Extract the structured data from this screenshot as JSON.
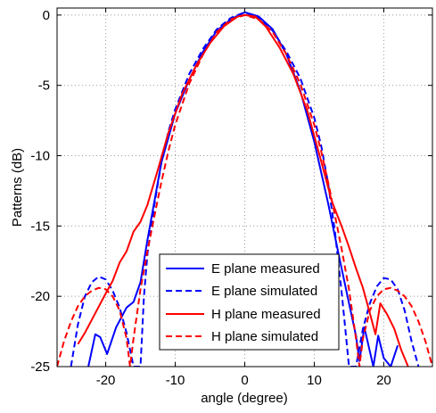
{
  "chart_data": {
    "type": "line",
    "title": "",
    "xlabel": "angle (degree)",
    "ylabel": "Patterns (dB)",
    "xlim": [
      -27,
      27
    ],
    "ylim": [
      -25,
      0.5
    ],
    "x_ticks": [
      -20,
      -10,
      0,
      10,
      20
    ],
    "x_tick_labels": [
      "-20",
      "-10",
      "0",
      "10",
      "20"
    ],
    "y_ticks": [
      0,
      -5,
      -10,
      -15,
      -20,
      -25
    ],
    "y_tick_labels": [
      "0",
      "-5",
      "-10",
      "-15",
      "-20",
      "-25"
    ],
    "grid": true,
    "legend_position": "bottom-center",
    "series": [
      {
        "name": "E plane measured",
        "color": "#0000ff",
        "dash": "solid",
        "x": [
          -22.5,
          -21.5,
          -20.8,
          -19.8,
          -18.5,
          -17.0,
          -16.0,
          -15.0,
          -14.0,
          -12.0,
          -10.0,
          -8.0,
          -6.0,
          -4.0,
          -2.0,
          0.0,
          2.0,
          4.0,
          6.0,
          8.0,
          10.0,
          12.0,
          13.5,
          15.0,
          16.0,
          16.5,
          17.2,
          18.5,
          19.2,
          20.0,
          21.0,
          22.0
        ],
        "y": [
          -25,
          -22.7,
          -22.9,
          -24.1,
          -22.2,
          -20.8,
          -20.4,
          -19.0,
          -16.0,
          -10.5,
          -7.0,
          -4.6,
          -2.6,
          -1.1,
          -0.3,
          0.2,
          -0.1,
          -1.0,
          -2.8,
          -5.4,
          -9.0,
          -13.4,
          -17.0,
          -20.5,
          -22.8,
          -24.6,
          -22.2,
          -25.0,
          -22.8,
          -24.4,
          -25.0,
          -23.5
        ]
      },
      {
        "name": "E plane simulated",
        "color": "#0000ff",
        "dash": "dashed",
        "x": [
          -25.0,
          -24.0,
          -23.0,
          -22.0,
          -21.0,
          -20.0,
          -19.0,
          -18.0,
          -17.0,
          -16.0,
          -15.0,
          -14.5,
          -14.0,
          -13.0,
          -12.0,
          -11.0,
          -10.0,
          -8.0,
          -6.0,
          -4.0,
          -2.0,
          0.0,
          2.0,
          4.0,
          6.0,
          8.0,
          10.0,
          11.0,
          12.0,
          13.0,
          14.0,
          14.5,
          15.0,
          16.0,
          17.0,
          18.0,
          19.0,
          20.0,
          21.0,
          22.0,
          23.0,
          24.0,
          25.0
        ],
        "y": [
          -25.0,
          -22.0,
          -20.0,
          -19.0,
          -18.6,
          -18.8,
          -19.6,
          -20.8,
          -22.6,
          -25.0,
          -25.0,
          -20.0,
          -17.0,
          -13.5,
          -10.5,
          -8.3,
          -6.7,
          -4.2,
          -2.4,
          -1.0,
          -0.2,
          0.2,
          -0.2,
          -1.1,
          -2.6,
          -4.5,
          -7.3,
          -9.3,
          -12.0,
          -15.5,
          -20.0,
          -22.5,
          -25.0,
          -25.0,
          -22.3,
          -20.5,
          -19.3,
          -18.7,
          -18.8,
          -19.5,
          -21.0,
          -23.2,
          -25.0
        ]
      },
      {
        "name": "H plane measured",
        "color": "#ff0000",
        "dash": "solid",
        "x": [
          -24.0,
          -23.0,
          -21.5,
          -20.0,
          -19.0,
          -18.0,
          -17.0,
          -16.0,
          -15.0,
          -14.0,
          -12.5,
          -11.0,
          -9.0,
          -7.0,
          -5.0,
          -3.0,
          -1.0,
          0.0,
          1.5,
          3.0,
          5.0,
          7.0,
          9.0,
          11.0,
          12.5,
          14.0,
          15.0,
          16.0,
          17.0,
          18.0,
          18.8,
          19.5,
          20.5,
          21.5,
          22.5,
          23.5
        ],
        "y": [
          -23.4,
          -22.6,
          -21.2,
          -19.8,
          -18.9,
          -17.6,
          -16.8,
          -15.4,
          -14.7,
          -13.5,
          -11.0,
          -8.4,
          -5.6,
          -3.6,
          -2.0,
          -0.8,
          -0.1,
          0.0,
          -0.1,
          -0.8,
          -2.3,
          -4.2,
          -6.8,
          -10.4,
          -13.2,
          -15.1,
          -16.5,
          -18.0,
          -19.4,
          -21.2,
          -22.7,
          -20.5,
          -21.3,
          -22.3,
          -23.8,
          -25.0
        ]
      },
      {
        "name": "H plane simulated",
        "color": "#ff0000",
        "dash": "dashed",
        "x": [
          -27.0,
          -26.0,
          -25.0,
          -24.0,
          -23.0,
          -22.0,
          -21.0,
          -20.0,
          -19.0,
          -18.0,
          -17.0,
          -16.5,
          -16.0,
          -15.0,
          -14.0,
          -13.0,
          -12.0,
          -11.0,
          -10.0,
          -8.0,
          -6.0,
          -4.0,
          -2.0,
          0.0,
          2.0,
          4.0,
          6.0,
          8.0,
          10.0,
          11.0,
          12.0,
          13.0,
          14.0,
          15.0,
          16.0,
          16.5,
          17.0,
          18.0,
          19.0,
          20.0,
          21.0,
          22.0,
          23.0,
          24.0,
          25.0,
          26.0,
          27.0
        ],
        "y": [
          -25.0,
          -23.2,
          -21.8,
          -20.7,
          -20.0,
          -19.6,
          -19.4,
          -19.5,
          -20.0,
          -21.0,
          -23.0,
          -25.0,
          -23.0,
          -19.5,
          -16.8,
          -14.3,
          -11.9,
          -9.7,
          -7.8,
          -4.9,
          -2.8,
          -1.2,
          -0.3,
          0.0,
          -0.3,
          -1.2,
          -2.8,
          -4.9,
          -7.8,
          -9.7,
          -11.9,
          -14.3,
          -16.8,
          -19.5,
          -23.0,
          -25.0,
          -23.0,
          -21.0,
          -20.0,
          -19.5,
          -19.4,
          -19.6,
          -20.0,
          -20.7,
          -21.8,
          -23.2,
          -25.0
        ]
      }
    ]
  }
}
